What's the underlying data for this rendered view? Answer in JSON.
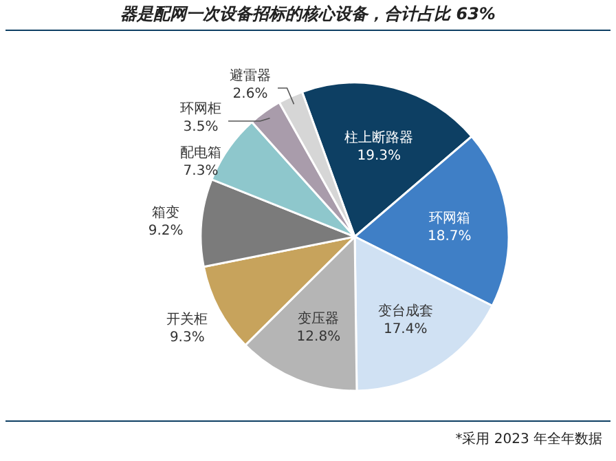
{
  "chart_data": {
    "type": "pie",
    "title": "器是配网一次设备招标的核心设备，合计占比 63%",
    "categories": [
      "柱上断路器",
      "环网箱",
      "变台成套",
      "变压器",
      "开关柜",
      "箱变",
      "配电箱",
      "环网柜",
      "避雷器"
    ],
    "values": [
      19.3,
      18.7,
      17.4,
      12.8,
      9.3,
      9.2,
      7.3,
      3.5,
      2.6
    ],
    "value_labels": [
      "19.3%",
      "18.7%",
      "17.4%",
      "12.8%",
      "9.3%",
      "9.2%",
      "7.3%",
      "3.5%",
      "2.6%"
    ],
    "colors": [
      "#0d3f63",
      "#3f7fc6",
      "#d0e1f3",
      "#b5b5b5",
      "#c7a35c",
      "#7b7b7b",
      "#8ec7cc",
      "#a99cab",
      "#d6d6d6"
    ],
    "annotations": [
      "*采用 2023 年全年数据"
    ]
  }
}
